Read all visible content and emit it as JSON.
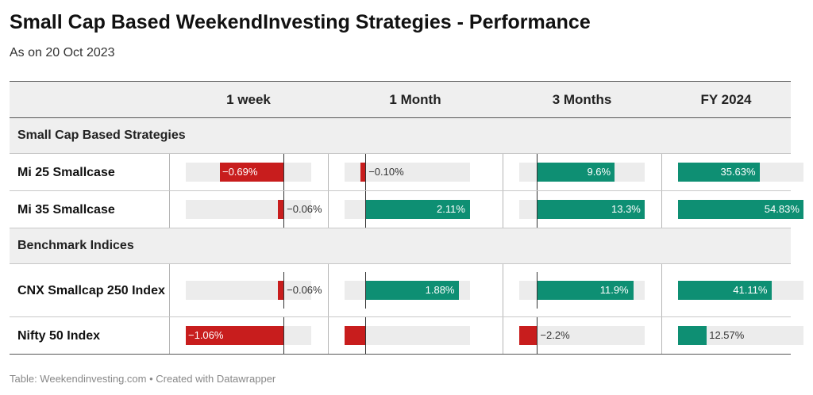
{
  "title": "Small Cap Based WeekendInvesting Strategies - Performance",
  "subtitle": "As on 20 Oct 2023",
  "footer": "Table: Weekendinvesting.com • Created with Datawrapper",
  "colors": {
    "positive": "#0e8f73",
    "negative": "#c81d1d",
    "track": "#ececec"
  },
  "chart_data": {
    "type": "table",
    "columns": [
      "1 week",
      "1 Month",
      "3 Months",
      "FY 2024"
    ],
    "groups": [
      {
        "name": "Small Cap Based Strategies",
        "rows": [
          {
            "label": "Mi 25 Smallcase",
            "values": [
              -0.69,
              -0.1,
              9.6,
              35.63
            ],
            "display": [
              "−0.69%",
              "−0.10%",
              "9.6%",
              "35.63%"
            ]
          },
          {
            "label": "Mi 35 Smallcase",
            "values": [
              -0.06,
              2.11,
              13.3,
              54.83
            ],
            "display": [
              "−0.06%",
              "2.11%",
              "13.3%",
              "54.83%"
            ]
          }
        ]
      },
      {
        "name": "Benchmark Indices",
        "rows": [
          {
            "label": "CNX Smallcap 250 Index",
            "values": [
              -0.06,
              1.88,
              11.9,
              41.11
            ],
            "display": [
              "−0.06%",
              "1.88%",
              "11.9%",
              "41.11%"
            ]
          },
          {
            "label": "Nifty 50 Index",
            "values": [
              -1.06,
              -0.42,
              -2.2,
              12.57
            ],
            "display": [
              "−1.06%",
              "",
              "−2.2%",
              "12.57%"
            ]
          }
        ]
      }
    ],
    "column_ranges": [
      [
        -1.06,
        0.3
      ],
      [
        -0.42,
        2.11
      ],
      [
        -2.2,
        13.3
      ],
      [
        0,
        54.83
      ]
    ]
  }
}
